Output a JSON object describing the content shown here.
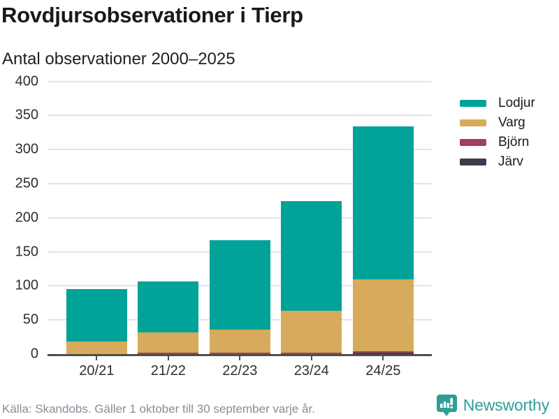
{
  "header": {
    "title": "Rovdjursobservationer i Tierp",
    "subtitle": "Antal observationer 2000–2025"
  },
  "footer": {
    "source": "Källa: Skandobs. Gäller 1 oktober till 30 september varje år.",
    "brand": "Newsworthy"
  },
  "colors": {
    "lodjur": "#00a398",
    "varg": "#d8ab5c",
    "bjorn": "#a23e61",
    "jarv": "#3f3b4d",
    "axis": "#4d4d4d",
    "grid": "#e4e4e4",
    "brand_teal": "#2f9e96"
  },
  "chart_data": {
    "type": "bar",
    "stacked": true,
    "title": "Rovdjursobservationer i Tierp",
    "subtitle": "Antal observationer 2000–2025",
    "categories": [
      "20/21",
      "21/22",
      "22/23",
      "23/24",
      "24/25"
    ],
    "series": [
      {
        "name": "Lodjur",
        "color": "#00a398",
        "values": [
          77,
          75,
          131,
          161,
          224
        ]
      },
      {
        "name": "Varg",
        "color": "#d8ab5c",
        "values": [
          18,
          30,
          34,
          61,
          106
        ]
      },
      {
        "name": "Björn",
        "color": "#a23e61",
        "values": [
          0,
          2,
          2,
          2,
          2
        ]
      },
      {
        "name": "Järv",
        "color": "#3f3b4d",
        "values": [
          0,
          0,
          0,
          0,
          2
        ]
      }
    ],
    "totals": [
      95,
      107,
      167,
      224,
      334
    ],
    "stack_order_bottom_to_top": [
      "Järv",
      "Björn",
      "Varg",
      "Lodjur"
    ],
    "xlabel": "",
    "ylabel": "",
    "ylim": [
      0,
      400
    ],
    "yticks": [
      0,
      50,
      100,
      150,
      200,
      250,
      300,
      350,
      400
    ],
    "grid": true,
    "legend_position": "right"
  }
}
